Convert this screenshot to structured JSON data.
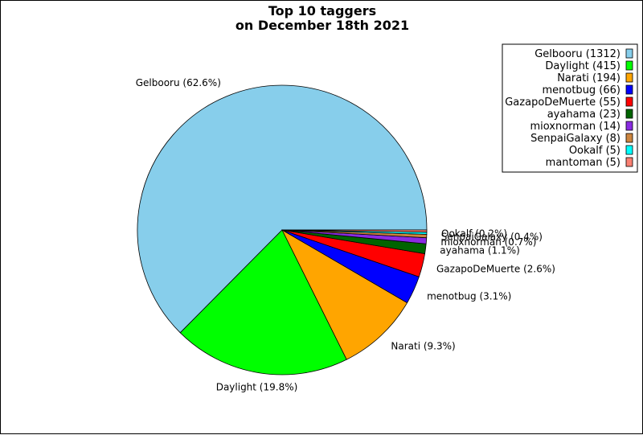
{
  "chart_data": {
    "type": "pie",
    "title_lines": [
      "Top 10 taggers",
      "on December 18th 2021"
    ],
    "legend_position": "top-right",
    "slices": [
      {
        "name": "Gelbooru",
        "value": 1312,
        "pct_label": "Gelbooru (62.6%)",
        "legend_label": "Gelbooru (1312)",
        "color": "#87CEEB"
      },
      {
        "name": "Daylight",
        "value": 415,
        "pct_label": "Daylight (19.8%)",
        "legend_label": "Daylight (415)",
        "color": "#00FF00"
      },
      {
        "name": "Narati",
        "value": 194,
        "pct_label": "Narati (9.3%)",
        "legend_label": "Narati (194)",
        "color": "#FFA500"
      },
      {
        "name": "menotbug",
        "value": 66,
        "pct_label": "menotbug (3.1%)",
        "legend_label": "menotbug (66)",
        "color": "#0000FF"
      },
      {
        "name": "GazapoDeMuerte",
        "value": 55,
        "pct_label": "GazapoDeMuerte (2.6%)",
        "legend_label": "GazapoDeMuerte (55)",
        "color": "#FF0000"
      },
      {
        "name": "ayahama",
        "value": 23,
        "pct_label": "ayahama (1.1%)",
        "legend_label": "ayahama (23)",
        "color": "#006400"
      },
      {
        "name": "mioxnorman",
        "value": 14,
        "pct_label": "mioxnorman (0.7%)",
        "legend_label": "mioxnorman (14)",
        "color": "#8A2BE2"
      },
      {
        "name": "SenpaiGalaxy",
        "value": 8,
        "pct_label": "SenpaiGalaxy (0.4%)",
        "legend_label": "SenpaiGalaxy (8)",
        "color": "#CD853F"
      },
      {
        "name": "Ookalf",
        "value": 5,
        "pct_label": "Ookalf (0.2%)",
        "legend_label": "Ookalf (5)",
        "color": "#00FFFF"
      },
      {
        "name": "mantoman",
        "value": 5,
        "pct_label": "",
        "legend_label": "mantoman (5)",
        "color": "#FA8072"
      }
    ]
  }
}
